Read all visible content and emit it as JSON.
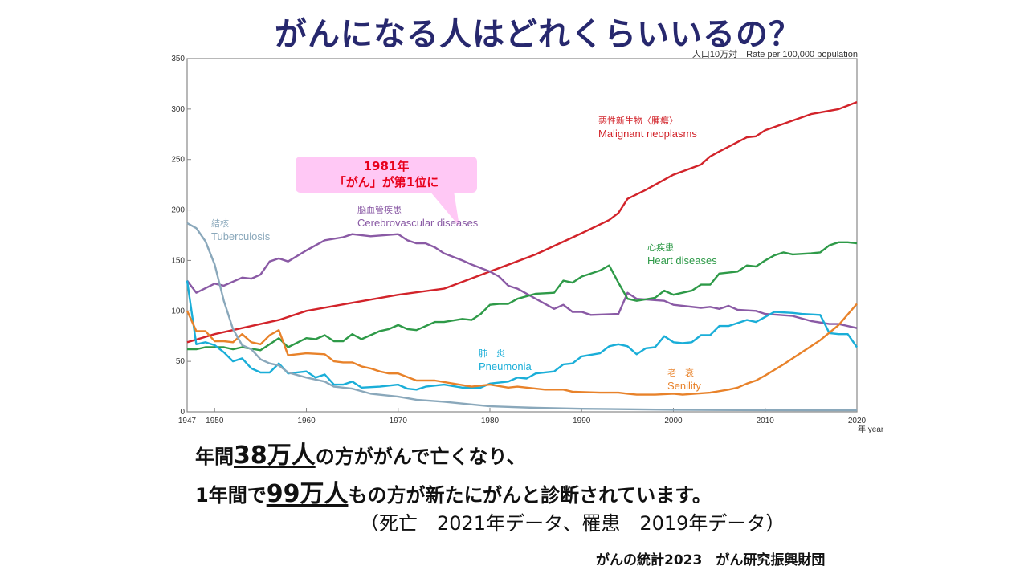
{
  "slide": {
    "title": "がんになる人はどれくらいいるの？",
    "message_line1": {
      "before": "年間",
      "highlight": "38万人",
      "after": "の方ががんで亡くなり、"
    },
    "message_line2": {
      "before": "1年間で",
      "highlight": "99万人",
      "after": "もの方が新たにがんと診断されています。"
    },
    "note": "（死亡　2021年データ、罹患　2019年データ）",
    "source": "がんの統計2023　がん研究振興財団",
    "callout": {
      "line1": "1981年",
      "line2": "「がん」が第1位に",
      "background": "#ffc8f5",
      "text_color": "#e8001c"
    }
  },
  "chart_data": {
    "type": "line",
    "ylabel": "人口10万対　Rate per 100,000 population",
    "xlabel": "年 year",
    "xlim": [
      1947,
      2020
    ],
    "ylim": [
      0,
      350
    ],
    "x_ticks": [
      {
        "value": 1947,
        "label": "1947"
      },
      {
        "value": 1950,
        "label": "1950"
      },
      {
        "value": 1960,
        "label": "1960"
      },
      {
        "value": 1970,
        "label": "1970"
      },
      {
        "value": 1980,
        "label": "1980"
      },
      {
        "value": 1990,
        "label": "1990"
      },
      {
        "value": 2000,
        "label": "2000"
      },
      {
        "value": 2010,
        "label": "2010"
      },
      {
        "value": 2020,
        "label": "2020"
      }
    ],
    "y_ticks": [
      {
        "value": 0,
        "label": "0"
      },
      {
        "value": 50,
        "label": "50"
      },
      {
        "value": 100,
        "label": "100"
      },
      {
        "value": 150,
        "label": "150"
      },
      {
        "value": 200,
        "label": "200"
      },
      {
        "value": 250,
        "label": "250"
      },
      {
        "value": 300,
        "label": "300"
      },
      {
        "value": 350,
        "label": "350"
      }
    ],
    "grid": false,
    "series": [
      {
        "name": "Malignant neoplasms",
        "name_jp": "悪性新生物〈腫瘍〉",
        "color": "#d2232a",
        "points": [
          [
            1947,
            69
          ],
          [
            1950,
            77
          ],
          [
            1955,
            87
          ],
          [
            1957,
            91
          ],
          [
            1960,
            100
          ],
          [
            1965,
            108
          ],
          [
            1970,
            116
          ],
          [
            1975,
            122
          ],
          [
            1980,
            139
          ],
          [
            1985,
            156
          ],
          [
            1990,
            177
          ],
          [
            1993,
            190
          ],
          [
            1994,
            197
          ],
          [
            1995,
            211
          ],
          [
            1997,
            220
          ],
          [
            2000,
            235
          ],
          [
            2003,
            245
          ],
          [
            2004,
            253
          ],
          [
            2005,
            258
          ],
          [
            2008,
            272
          ],
          [
            2009,
            273
          ],
          [
            2010,
            279
          ],
          [
            2015,
            295
          ],
          [
            2018,
            300
          ],
          [
            2020,
            307
          ]
        ]
      },
      {
        "name": "Cerebrovascular diseases",
        "name_jp": "脳血管疾患",
        "color": "#8a5aa5",
        "points": [
          [
            1947,
            130
          ],
          [
            1948,
            118
          ],
          [
            1950,
            127
          ],
          [
            1951,
            125
          ],
          [
            1953,
            133
          ],
          [
            1954,
            132
          ],
          [
            1955,
            136
          ],
          [
            1956,
            149
          ],
          [
            1957,
            152
          ],
          [
            1958,
            149
          ],
          [
            1960,
            160
          ],
          [
            1962,
            170
          ],
          [
            1964,
            173
          ],
          [
            1965,
            176
          ],
          [
            1967,
            174
          ],
          [
            1970,
            176
          ],
          [
            1971,
            170
          ],
          [
            1972,
            167
          ],
          [
            1973,
            167
          ],
          [
            1974,
            163
          ],
          [
            1975,
            157
          ],
          [
            1977,
            150
          ],
          [
            1978,
            146
          ],
          [
            1980,
            139
          ],
          [
            1981,
            134
          ],
          [
            1982,
            125
          ],
          [
            1983,
            122
          ],
          [
            1985,
            112
          ],
          [
            1987,
            102
          ],
          [
            1988,
            106
          ],
          [
            1989,
            99
          ],
          [
            1990,
            99
          ],
          [
            1991,
            96
          ],
          [
            1994,
            97
          ],
          [
            1995,
            118
          ],
          [
            1996,
            112
          ],
          [
            1999,
            110
          ],
          [
            2000,
            106
          ],
          [
            2003,
            103
          ],
          [
            2004,
            104
          ],
          [
            2005,
            102
          ],
          [
            2006,
            105
          ],
          [
            2007,
            101
          ],
          [
            2009,
            100
          ],
          [
            2010,
            97
          ],
          [
            2013,
            95
          ],
          [
            2015,
            90
          ],
          [
            2017,
            87
          ],
          [
            2018,
            87
          ],
          [
            2020,
            83
          ]
        ]
      },
      {
        "name": "Heart diseases",
        "name_jp": "心疾患",
        "color": "#2e9a48",
        "points": [
          [
            1947,
            62
          ],
          [
            1948,
            62
          ],
          [
            1949,
            64
          ],
          [
            1951,
            64
          ],
          [
            1952,
            62
          ],
          [
            1953,
            64
          ],
          [
            1955,
            61
          ],
          [
            1957,
            73
          ],
          [
            1958,
            64
          ],
          [
            1960,
            73
          ],
          [
            1961,
            72
          ],
          [
            1962,
            76
          ],
          [
            1963,
            70
          ],
          [
            1964,
            70
          ],
          [
            1965,
            77
          ],
          [
            1966,
            72
          ],
          [
            1968,
            80
          ],
          [
            1969,
            82
          ],
          [
            1970,
            86
          ],
          [
            1971,
            82
          ],
          [
            1972,
            81
          ],
          [
            1974,
            89
          ],
          [
            1975,
            89
          ],
          [
            1977,
            92
          ],
          [
            1978,
            91
          ],
          [
            1979,
            97
          ],
          [
            1980,
            106
          ],
          [
            1981,
            107
          ],
          [
            1982,
            107
          ],
          [
            1983,
            112
          ],
          [
            1985,
            117
          ],
          [
            1987,
            118
          ],
          [
            1988,
            130
          ],
          [
            1989,
            128
          ],
          [
            1990,
            134
          ],
          [
            1992,
            140
          ],
          [
            1993,
            145
          ],
          [
            1994,
            128
          ],
          [
            1995,
            112
          ],
          [
            1996,
            110
          ],
          [
            1998,
            113
          ],
          [
            1999,
            120
          ],
          [
            2000,
            116
          ],
          [
            2002,
            120
          ],
          [
            2003,
            126
          ],
          [
            2004,
            126
          ],
          [
            2005,
            137
          ],
          [
            2007,
            139
          ],
          [
            2008,
            145
          ],
          [
            2009,
            144
          ],
          [
            2010,
            150
          ],
          [
            2011,
            155
          ],
          [
            2012,
            158
          ],
          [
            2013,
            156
          ],
          [
            2015,
            157
          ],
          [
            2016,
            158
          ],
          [
            2017,
            165
          ],
          [
            2018,
            168
          ],
          [
            2019,
            168
          ],
          [
            2020,
            167
          ]
        ]
      },
      {
        "name": "Pneumonia",
        "name_jp": "肺　炎",
        "color": "#1aaed8",
        "points": [
          [
            1947,
            130
          ],
          [
            1948,
            67
          ],
          [
            1949,
            69
          ],
          [
            1950,
            66
          ],
          [
            1951,
            59
          ],
          [
            1952,
            50
          ],
          [
            1953,
            53
          ],
          [
            1954,
            43
          ],
          [
            1955,
            39
          ],
          [
            1956,
            39
          ],
          [
            1957,
            48
          ],
          [
            1958,
            38
          ],
          [
            1960,
            40
          ],
          [
            1961,
            34
          ],
          [
            1962,
            37
          ],
          [
            1963,
            27
          ],
          [
            1964,
            27
          ],
          [
            1965,
            30
          ],
          [
            1966,
            24
          ],
          [
            1968,
            25
          ],
          [
            1970,
            27
          ],
          [
            1971,
            23
          ],
          [
            1972,
            22
          ],
          [
            1973,
            25
          ],
          [
            1975,
            27
          ],
          [
            1977,
            24
          ],
          [
            1979,
            24
          ],
          [
            1980,
            28
          ],
          [
            1982,
            30
          ],
          [
            1983,
            34
          ],
          [
            1984,
            33
          ],
          [
            1985,
            38
          ],
          [
            1987,
            40
          ],
          [
            1988,
            47
          ],
          [
            1989,
            48
          ],
          [
            1990,
            55
          ],
          [
            1992,
            58
          ],
          [
            1993,
            65
          ],
          [
            1994,
            67
          ],
          [
            1995,
            65
          ],
          [
            1996,
            57
          ],
          [
            1997,
            63
          ],
          [
            1998,
            64
          ],
          [
            1999,
            75
          ],
          [
            2000,
            69
          ],
          [
            2001,
            68
          ],
          [
            2002,
            69
          ],
          [
            2003,
            76
          ],
          [
            2004,
            76
          ],
          [
            2005,
            85
          ],
          [
            2006,
            85
          ],
          [
            2008,
            91
          ],
          [
            2009,
            89
          ],
          [
            2010,
            94
          ],
          [
            2011,
            99
          ],
          [
            2013,
            98
          ],
          [
            2014,
            97
          ],
          [
            2016,
            96
          ],
          [
            2017,
            78
          ],
          [
            2018,
            77
          ],
          [
            2019,
            77
          ],
          [
            2020,
            64
          ]
        ]
      },
      {
        "name": "Senility",
        "name_jp": "老　衰",
        "color": "#e8822a",
        "points": [
          [
            1947,
            100
          ],
          [
            1948,
            80
          ],
          [
            1949,
            80
          ],
          [
            1950,
            70
          ],
          [
            1951,
            70
          ],
          [
            1952,
            69
          ],
          [
            1953,
            77
          ],
          [
            1954,
            69
          ],
          [
            1955,
            67
          ],
          [
            1956,
            76
          ],
          [
            1957,
            81
          ],
          [
            1958,
            56
          ],
          [
            1960,
            58
          ],
          [
            1962,
            57
          ],
          [
            1963,
            50
          ],
          [
            1964,
            49
          ],
          [
            1965,
            49
          ],
          [
            1966,
            45
          ],
          [
            1967,
            43
          ],
          [
            1968,
            40
          ],
          [
            1969,
            38
          ],
          [
            1970,
            38
          ],
          [
            1972,
            31
          ],
          [
            1974,
            31
          ],
          [
            1976,
            28
          ],
          [
            1978,
            25
          ],
          [
            1980,
            27
          ],
          [
            1982,
            24
          ],
          [
            1983,
            25
          ],
          [
            1986,
            22
          ],
          [
            1988,
            22
          ],
          [
            1989,
            20
          ],
          [
            1992,
            19
          ],
          [
            1994,
            19
          ],
          [
            1995,
            18
          ],
          [
            1996,
            17
          ],
          [
            1998,
            17
          ],
          [
            2000,
            18
          ],
          [
            2001,
            17
          ],
          [
            2004,
            19
          ],
          [
            2006,
            22
          ],
          [
            2007,
            24
          ],
          [
            2008,
            28
          ],
          [
            2009,
            31
          ],
          [
            2010,
            36
          ],
          [
            2012,
            47
          ],
          [
            2014,
            59
          ],
          [
            2016,
            71
          ],
          [
            2018,
            86
          ],
          [
            2020,
            107
          ]
        ]
      },
      {
        "name": "Tuberculosis",
        "name_jp": "結核",
        "color": "#8aa8bb",
        "points": [
          [
            1947,
            187
          ],
          [
            1948,
            182
          ],
          [
            1949,
            169
          ],
          [
            1950,
            146
          ],
          [
            1951,
            110
          ],
          [
            1952,
            82
          ],
          [
            1953,
            66
          ],
          [
            1954,
            62
          ],
          [
            1955,
            52
          ],
          [
            1956,
            48
          ],
          [
            1957,
            46
          ],
          [
            1958,
            39
          ],
          [
            1960,
            34
          ],
          [
            1962,
            30
          ],
          [
            1963,
            25
          ],
          [
            1965,
            23
          ],
          [
            1967,
            18
          ],
          [
            1970,
            15
          ],
          [
            1972,
            12
          ],
          [
            1975,
            10
          ],
          [
            1980,
            5.5
          ],
          [
            1985,
            4
          ],
          [
            1990,
            3
          ],
          [
            2000,
            2.1
          ],
          [
            2010,
            1.7
          ],
          [
            2020,
            1.5
          ]
        ]
      }
    ]
  }
}
